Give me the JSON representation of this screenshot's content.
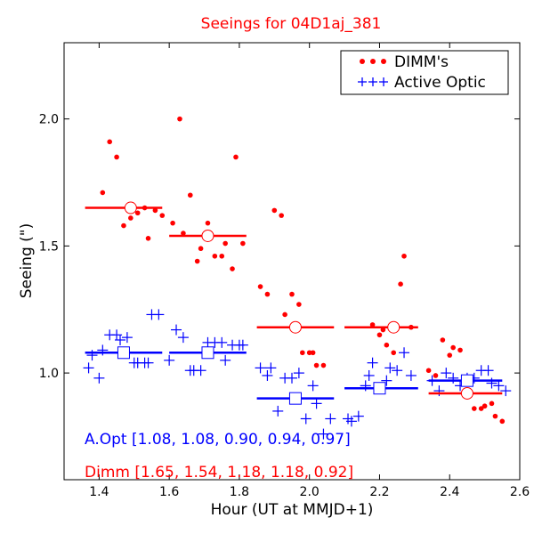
{
  "chart_data": {
    "type": "scatter",
    "title": "Seeings for 04D1aj_381",
    "xlabel": "Hour (UT at MMJD+1)",
    "ylabel": "Seeing (\")",
    "xlim": [
      1.3,
      2.6
    ],
    "ylim": [
      0.58,
      2.3
    ],
    "xticks": [
      "1.4",
      "1.6",
      "1.8",
      "2.0",
      "2.2",
      "2.4",
      "2.6"
    ],
    "yticks": [
      "1.0",
      "1.5",
      "2.0"
    ],
    "grid": false,
    "legend_position": "top-right",
    "colors": {
      "dimm": "#ff0000",
      "aopt": "#0000ff"
    },
    "series": [
      {
        "name": "DIMM's",
        "marker": "dot",
        "color": "#ff0000",
        "points": [
          [
            1.41,
            1.71
          ],
          [
            1.43,
            1.91
          ],
          [
            1.45,
            1.85
          ],
          [
            1.47,
            1.58
          ],
          [
            1.49,
            1.61
          ],
          [
            1.51,
            1.63
          ],
          [
            1.53,
            1.65
          ],
          [
            1.54,
            1.53
          ],
          [
            1.56,
            1.64
          ],
          [
            1.58,
            1.62
          ],
          [
            1.61,
            1.59
          ],
          [
            1.63,
            2.0
          ],
          [
            1.64,
            1.55
          ],
          [
            1.66,
            1.7
          ],
          [
            1.68,
            1.44
          ],
          [
            1.69,
            1.49
          ],
          [
            1.71,
            1.59
          ],
          [
            1.73,
            1.46
          ],
          [
            1.75,
            1.46
          ],
          [
            1.76,
            1.51
          ],
          [
            1.78,
            1.41
          ],
          [
            1.79,
            1.85
          ],
          [
            1.81,
            1.51
          ],
          [
            1.86,
            1.34
          ],
          [
            1.88,
            1.31
          ],
          [
            1.9,
            1.64
          ],
          [
            1.92,
            1.62
          ],
          [
            1.93,
            1.23
          ],
          [
            1.95,
            1.31
          ],
          [
            1.97,
            1.27
          ],
          [
            1.98,
            1.08
          ],
          [
            2.0,
            1.08
          ],
          [
            2.01,
            1.08
          ],
          [
            2.02,
            1.03
          ],
          [
            2.04,
            1.03
          ],
          [
            2.18,
            1.19
          ],
          [
            2.2,
            1.15
          ],
          [
            2.21,
            1.17
          ],
          [
            2.22,
            1.11
          ],
          [
            2.24,
            1.08
          ],
          [
            2.26,
            1.35
          ],
          [
            2.27,
            1.46
          ],
          [
            2.29,
            1.18
          ],
          [
            2.34,
            1.01
          ],
          [
            2.36,
            0.99
          ],
          [
            2.38,
            1.13
          ],
          [
            2.4,
            1.07
          ],
          [
            2.41,
            1.1
          ],
          [
            2.43,
            1.09
          ],
          [
            2.46,
            0.96
          ],
          [
            2.47,
            0.86
          ],
          [
            2.49,
            0.86
          ],
          [
            2.5,
            0.87
          ],
          [
            2.52,
            0.88
          ],
          [
            2.53,
            0.83
          ],
          [
            2.55,
            0.81
          ]
        ]
      },
      {
        "name": "Active Optic",
        "marker": "plus",
        "color": "#0000ff",
        "points": [
          [
            1.37,
            1.02
          ],
          [
            1.38,
            1.07
          ],
          [
            1.4,
            0.98
          ],
          [
            1.41,
            1.09
          ],
          [
            1.43,
            1.15
          ],
          [
            1.45,
            1.15
          ],
          [
            1.46,
            1.13
          ],
          [
            1.48,
            1.14
          ],
          [
            1.5,
            1.04
          ],
          [
            1.51,
            1.04
          ],
          [
            1.53,
            1.04
          ],
          [
            1.54,
            1.04
          ],
          [
            1.55,
            1.23
          ],
          [
            1.57,
            1.23
          ],
          [
            1.6,
            1.05
          ],
          [
            1.62,
            1.17
          ],
          [
            1.64,
            1.14
          ],
          [
            1.66,
            1.01
          ],
          [
            1.67,
            1.01
          ],
          [
            1.69,
            1.01
          ],
          [
            1.71,
            1.12
          ],
          [
            1.73,
            1.12
          ],
          [
            1.75,
            1.12
          ],
          [
            1.76,
            1.05
          ],
          [
            1.78,
            1.11
          ],
          [
            1.8,
            1.11
          ],
          [
            1.81,
            1.11
          ],
          [
            1.86,
            1.02
          ],
          [
            1.88,
            0.99
          ],
          [
            1.89,
            1.02
          ],
          [
            1.91,
            0.85
          ],
          [
            1.93,
            0.98
          ],
          [
            1.95,
            0.98
          ],
          [
            1.97,
            1.0
          ],
          [
            1.99,
            0.82
          ],
          [
            2.01,
            0.95
          ],
          [
            2.02,
            0.88
          ],
          [
            2.04,
            0.76
          ],
          [
            2.06,
            0.82
          ],
          [
            2.11,
            0.82
          ],
          [
            2.12,
            0.81
          ],
          [
            2.14,
            0.83
          ],
          [
            2.16,
            0.95
          ],
          [
            2.17,
            0.99
          ],
          [
            2.18,
            1.04
          ],
          [
            2.2,
            0.94
          ],
          [
            2.22,
            0.97
          ],
          [
            2.23,
            1.02
          ],
          [
            2.25,
            1.01
          ],
          [
            2.27,
            1.08
          ],
          [
            2.29,
            0.99
          ],
          [
            2.35,
            0.97
          ],
          [
            2.37,
            0.93
          ],
          [
            2.39,
            1.0
          ],
          [
            2.41,
            0.98
          ],
          [
            2.43,
            0.95
          ],
          [
            2.45,
            0.98
          ],
          [
            2.47,
            0.98
          ],
          [
            2.49,
            1.01
          ],
          [
            2.51,
            1.01
          ],
          [
            2.52,
            0.96
          ],
          [
            2.54,
            0.95
          ],
          [
            2.56,
            0.93
          ]
        ]
      }
    ],
    "dimm_bins": [
      {
        "x0": 1.36,
        "x1": 1.58,
        "mean": 1.65,
        "xc": 1.49
      },
      {
        "x0": 1.6,
        "x1": 1.82,
        "mean": 1.54,
        "xc": 1.71
      },
      {
        "x0": 1.85,
        "x1": 2.07,
        "mean": 1.18,
        "xc": 1.96
      },
      {
        "x0": 2.1,
        "x1": 2.31,
        "mean": 1.18,
        "xc": 2.24
      },
      {
        "x0": 2.34,
        "x1": 2.55,
        "mean": 0.92,
        "xc": 2.45
      }
    ],
    "aopt_bins": [
      {
        "x0": 1.36,
        "x1": 1.58,
        "mean": 1.08,
        "xc": 1.47
      },
      {
        "x0": 1.6,
        "x1": 1.82,
        "mean": 1.08,
        "xc": 1.71
      },
      {
        "x0": 1.85,
        "x1": 2.07,
        "mean": 0.9,
        "xc": 1.96
      },
      {
        "x0": 2.1,
        "x1": 2.31,
        "mean": 0.94,
        "xc": 2.2
      },
      {
        "x0": 2.34,
        "x1": 2.55,
        "mean": 0.97,
        "xc": 2.45
      }
    ],
    "annotations": {
      "aopt": "A.Opt [1.08, 1.08, 0.90, 0.94, 0.97]",
      "dimm": "Dimm [1.65, 1.54, 1.18, 1.18, 0.92]"
    }
  }
}
